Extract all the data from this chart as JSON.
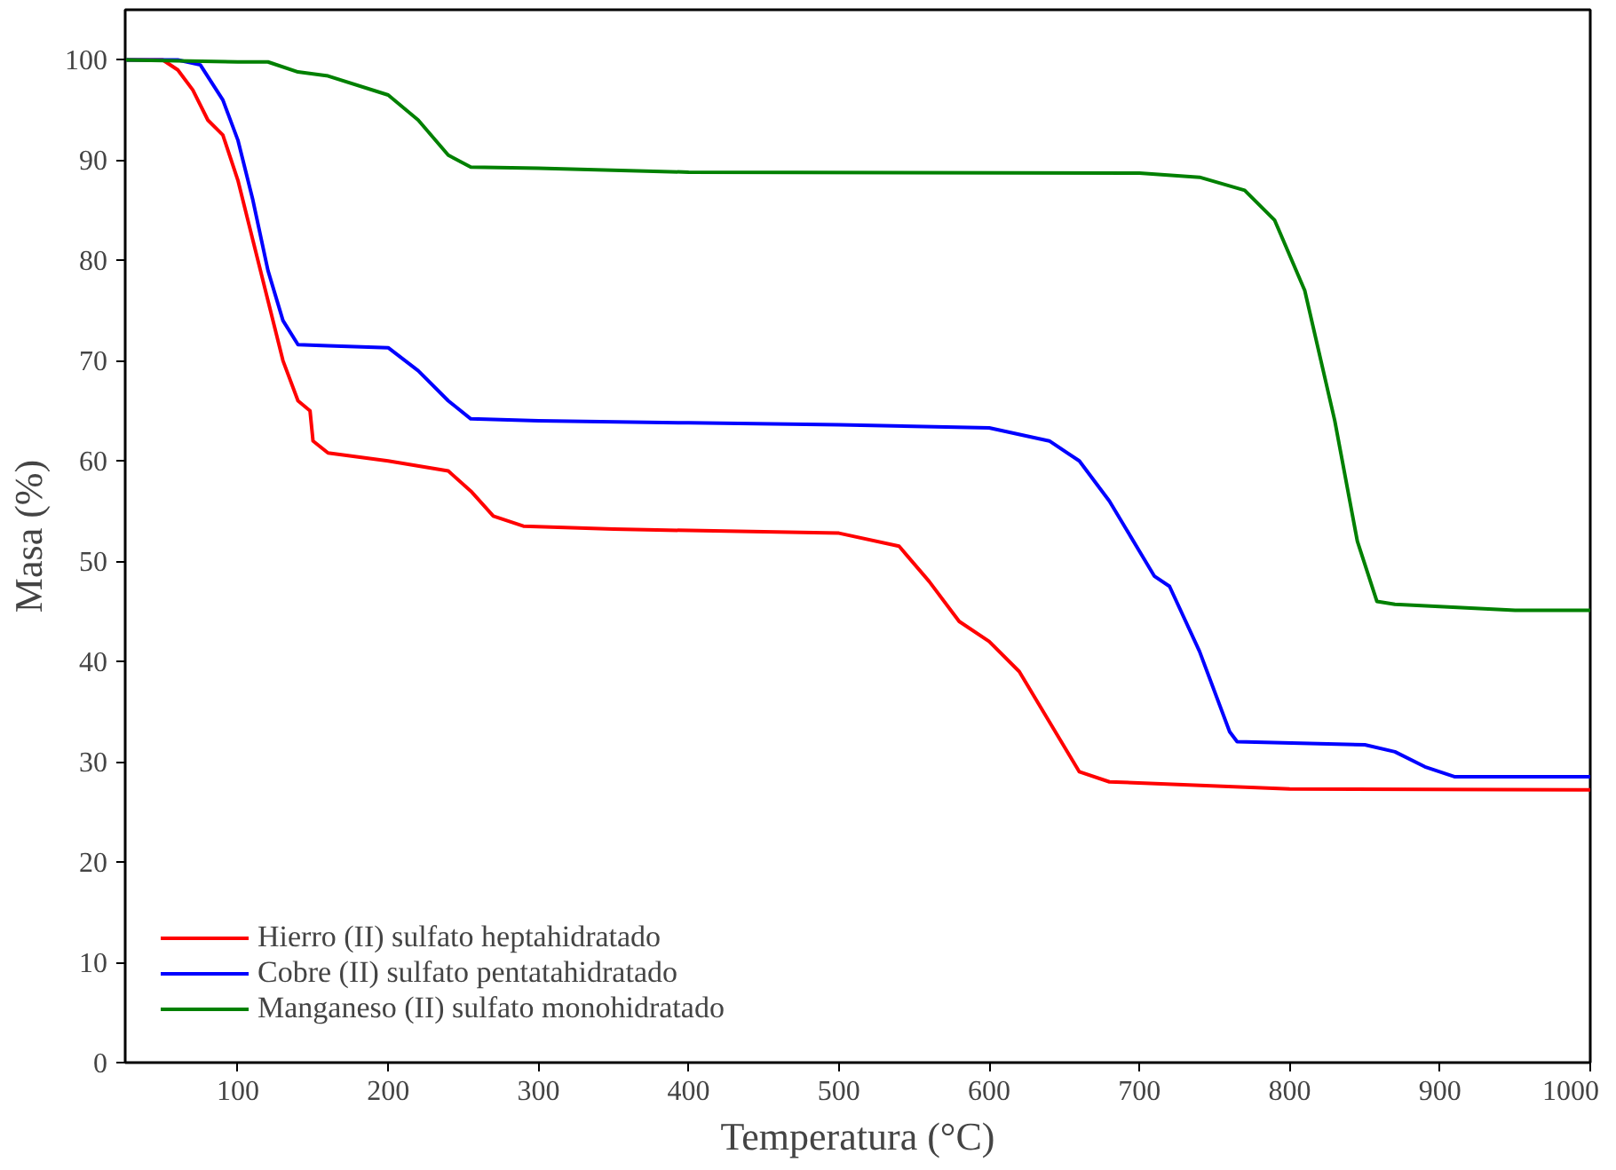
{
  "chart_data": {
    "type": "line",
    "xlabel": "Temperatura (°C)",
    "ylabel": "Masa (%)",
    "xlim": [
      25,
      1000
    ],
    "ylim": [
      0,
      105
    ],
    "xticks": [
      100,
      200,
      300,
      400,
      500,
      600,
      700,
      800,
      900,
      1000
    ],
    "yticks": [
      0,
      10,
      20,
      30,
      40,
      50,
      60,
      70,
      80,
      90,
      100
    ],
    "grid": false,
    "legend": "bottom left",
    "marker": "none",
    "line_style": "solid",
    "series": [
      {
        "name": "Hierro (II) sulfato heptahidratado",
        "color": "#ff0000",
        "x": [
          25,
          50,
          60,
          70,
          80,
          90,
          100,
          110,
          120,
          130,
          140,
          148,
          150,
          160,
          200,
          240,
          255,
          270,
          290,
          350,
          500,
          540,
          560,
          580,
          600,
          620,
          640,
          660,
          680,
          800,
          1000
        ],
        "values": [
          100,
          100,
          99,
          97,
          94,
          92.5,
          88,
          82,
          76,
          70,
          66,
          65,
          62,
          60.8,
          60,
          59,
          57,
          54.5,
          53.5,
          53.2,
          52.8,
          51.5,
          48,
          44,
          42,
          39,
          34,
          29,
          28,
          27.3,
          27.2
        ]
      },
      {
        "name": "Cobre (II) sulfato pentatahidratado",
        "color": "#0000ff",
        "x": [
          25,
          60,
          75,
          90,
          100,
          110,
          120,
          130,
          140,
          160,
          200,
          220,
          240,
          255,
          300,
          400,
          500,
          600,
          640,
          660,
          680,
          700,
          710,
          720,
          740,
          760,
          765,
          850,
          870,
          890,
          910,
          1000
        ],
        "values": [
          100,
          100,
          99.5,
          96,
          92,
          86,
          79,
          74,
          71.6,
          71.5,
          71.3,
          69,
          66,
          64.2,
          64,
          63.8,
          63.6,
          63.3,
          62,
          60,
          56,
          51,
          48.5,
          47.5,
          41,
          33,
          32,
          31.7,
          31,
          29.5,
          28.5,
          28.5
        ]
      },
      {
        "name": "Manganeso (II) sulfato monohidratado",
        "color": "#008000",
        "x": [
          25,
          100,
          120,
          140,
          160,
          200,
          220,
          240,
          255,
          300,
          400,
          700,
          740,
          770,
          790,
          810,
          830,
          845,
          858,
          870,
          950,
          1000
        ],
        "values": [
          100,
          99.8,
          99.8,
          98.8,
          98.4,
          96.5,
          94,
          90.5,
          89.3,
          89.2,
          88.8,
          88.7,
          88.3,
          87,
          84,
          77,
          64,
          52,
          46,
          45.7,
          45.1,
          45.1
        ]
      }
    ]
  }
}
